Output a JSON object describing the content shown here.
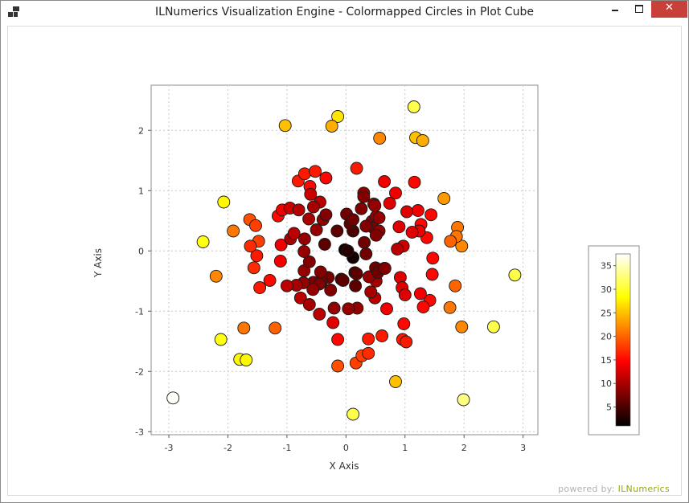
{
  "window": {
    "title": "ILNumerics Visualization Engine - Colormapped Circles in Plot Cube",
    "close_glyph": "✕"
  },
  "footer": {
    "powered_by": "powered by:",
    "brand": "ILNumerics",
    "brand_color": "#9aa515"
  },
  "chart_data": {
    "type": "scatter",
    "title": "",
    "xlabel": "X Axis",
    "ylabel": "Y Axis",
    "xlim": [
      -3.3,
      3.25
    ],
    "ylim": [
      -3.05,
      2.75
    ],
    "xticks": [
      -3,
      -2,
      -1,
      0,
      1,
      2,
      3
    ],
    "yticks": [
      -3,
      -2,
      -1,
      0,
      1,
      2
    ],
    "grid": true,
    "legend": "none",
    "colormap": "hot",
    "colorbar": {
      "placement": "right",
      "range": [
        1,
        37.5
      ],
      "ticks": [
        5,
        10,
        15,
        20,
        25,
        30,
        35
      ]
    },
    "points": [
      [
        -2.93,
        -2.44,
        37.2
      ],
      [
        1.99,
        -2.47,
        33
      ],
      [
        0.12,
        -2.71,
        31
      ],
      [
        2.86,
        -0.4,
        31
      ],
      [
        1.15,
        2.39,
        31
      ],
      [
        2.5,
        -1.26,
        31
      ],
      [
        -2.12,
        -1.47,
        29
      ],
      [
        -1.8,
        -1.8,
        28
      ],
      [
        -1.69,
        -1.81,
        28
      ],
      [
        0.84,
        -2.17,
        25
      ],
      [
        -2.42,
        0.15,
        29
      ],
      [
        -2.07,
        0.81,
        28
      ],
      [
        -0.14,
        2.23,
        27
      ],
      [
        -1.03,
        2.08,
        25
      ],
      [
        -0.24,
        2.07,
        24
      ],
      [
        1.18,
        1.88,
        25
      ],
      [
        1.3,
        1.83,
        24
      ],
      [
        0.57,
        1.87,
        22
      ],
      [
        1.66,
        0.87,
        23
      ],
      [
        1.96,
        0.08,
        22
      ],
      [
        1.89,
        0.39,
        21
      ],
      [
        1.87,
        0.24,
        21
      ],
      [
        1.77,
        0.16,
        20
      ],
      [
        1.96,
        -1.26,
        22
      ],
      [
        1.76,
        -0.94,
        21
      ],
      [
        1.85,
        -0.58,
        20
      ],
      [
        -2.2,
        -0.42,
        22
      ],
      [
        -1.91,
        0.33,
        21
      ],
      [
        -1.73,
        -1.28,
        21
      ],
      [
        -1.2,
        -1.28,
        20
      ],
      [
        -0.14,
        -1.91,
        19
      ],
      [
        0.17,
        -1.86,
        18
      ],
      [
        0.27,
        -1.74,
        18
      ],
      [
        0.38,
        -1.7,
        17
      ],
      [
        -1.63,
        0.52,
        19
      ],
      [
        -1.48,
        0.16,
        18
      ],
      [
        -1.53,
        0.42,
        18
      ],
      [
        -1.56,
        -0.28,
        17
      ],
      [
        -1.51,
        -0.08,
        16
      ],
      [
        -1.62,
        0.08,
        17
      ],
      [
        -1.46,
        -0.61,
        16
      ],
      [
        -1.29,
        -0.49,
        15
      ],
      [
        -1.11,
        -0.17,
        14
      ],
      [
        -1.15,
        0.58,
        15
      ],
      [
        -1.1,
        0.1,
        14
      ],
      [
        -1.08,
        0.68,
        14
      ],
      [
        -0.81,
        1.16,
        16
      ],
      [
        -0.7,
        1.28,
        16
      ],
      [
        -0.52,
        1.32,
        16
      ],
      [
        -0.34,
        1.21,
        15
      ],
      [
        -0.61,
        1.07,
        15
      ],
      [
        0.18,
        1.37,
        16
      ],
      [
        -0.14,
        -1.47,
        15
      ],
      [
        -0.22,
        -1.19,
        13
      ],
      [
        0.38,
        -1.46,
        16
      ],
      [
        0.61,
        -1.41,
        16
      ],
      [
        0.69,
        -0.96,
        14
      ],
      [
        0.96,
        -1.47,
        16
      ],
      [
        1.02,
        -1.51,
        16
      ],
      [
        0.98,
        -1.21,
        15
      ],
      [
        1.47,
        -0.12,
        15
      ],
      [
        1.46,
        -0.39,
        15
      ],
      [
        1.42,
        -0.82,
        15
      ],
      [
        1.31,
        -0.93,
        15
      ],
      [
        1.26,
        -0.71,
        14
      ],
      [
        1.44,
        0.6,
        15
      ],
      [
        1.37,
        0.22,
        15
      ],
      [
        1.27,
        0.44,
        15
      ],
      [
        1.24,
        0.33,
        14
      ],
      [
        1.12,
        0.31,
        13
      ],
      [
        1.22,
        0.67,
        14
      ],
      [
        1.03,
        0.65,
        13
      ],
      [
        1.16,
        1.14,
        15
      ],
      [
        0.84,
        0.96,
        14
      ],
      [
        0.74,
        0.79,
        13
      ],
      [
        0.65,
        1.15,
        14
      ],
      [
        0.9,
        0.4,
        13
      ],
      [
        0.97,
        0.08,
        12
      ],
      [
        0.87,
        0.03,
        11
      ],
      [
        0.92,
        -0.44,
        13
      ],
      [
        0.95,
        -0.61,
        13
      ],
      [
        1.0,
        -0.73,
        13
      ],
      [
        0.49,
        -0.78,
        11
      ],
      [
        0.51,
        -0.5,
        10
      ],
      [
        0.39,
        -0.43,
        9
      ],
      [
        0.42,
        -0.68,
        10
      ],
      [
        0.19,
        -0.95,
        9
      ],
      [
        0.04,
        -0.96,
        9
      ],
      [
        -0.2,
        -0.95,
        9
      ],
      [
        -0.08,
        -0.47,
        5
      ],
      [
        0.16,
        -0.58,
        6
      ],
      [
        0.15,
        -0.36,
        5
      ],
      [
        -0.3,
        -0.44,
        7
      ],
      [
        -0.42,
        -0.52,
        8
      ],
      [
        -0.43,
        -0.35,
        8
      ],
      [
        -0.55,
        -0.52,
        8
      ],
      [
        -0.72,
        -0.53,
        9
      ],
      [
        -0.84,
        -0.57,
        10
      ],
      [
        -1.0,
        -0.58,
        11
      ],
      [
        -0.71,
        -0.33,
        9
      ],
      [
        -0.77,
        -0.78,
        11
      ],
      [
        -0.62,
        -0.89,
        10
      ],
      [
        -0.45,
        -1.05,
        11
      ],
      [
        -0.7,
        0.2,
        9
      ],
      [
        -0.94,
        0.2,
        10
      ],
      [
        -0.71,
        -0.01,
        9
      ],
      [
        -0.88,
        0.29,
        11
      ],
      [
        -0.95,
        0.71,
        12
      ],
      [
        -0.8,
        0.68,
        11
      ],
      [
        -0.63,
        0.53,
        10
      ],
      [
        -0.5,
        0.35,
        9
      ],
      [
        -0.6,
        0.94,
        12
      ],
      [
        -0.44,
        0.81,
        11
      ],
      [
        -0.55,
        0.73,
        10
      ],
      [
        -0.39,
        0.52,
        9
      ],
      [
        -0.15,
        0.33,
        6
      ],
      [
        -0.36,
        0.11,
        6
      ],
      [
        -0.62,
        -0.18,
        8
      ],
      [
        -0.02,
        0.02,
        2
      ],
      [
        0.12,
        -0.11,
        2
      ],
      [
        0.03,
        0.0,
        3
      ],
      [
        0.12,
        0.33,
        5
      ],
      [
        0.01,
        0.61,
        7
      ],
      [
        0.07,
        0.45,
        6
      ],
      [
        0.26,
        0.7,
        8
      ],
      [
        0.3,
        0.96,
        9
      ],
      [
        0.47,
        0.78,
        10
      ],
      [
        0.44,
        0.49,
        9
      ],
      [
        0.51,
        0.57,
        9
      ],
      [
        0.47,
        0.38,
        8
      ],
      [
        0.34,
        0.41,
        8
      ],
      [
        0.56,
        0.33,
        9
      ],
      [
        0.31,
        0.14,
        7
      ],
      [
        0.34,
        -0.05,
        7
      ],
      [
        0.5,
        -0.28,
        7
      ],
      [
        0.54,
        -0.36,
        7
      ],
      [
        0.65,
        -0.29,
        8
      ],
      [
        0.66,
        -0.29,
        8
      ],
      [
        0.12,
        0.52,
        7
      ],
      [
        0.3,
        0.9,
        8
      ],
      [
        -0.45,
        -0.55,
        8
      ],
      [
        -0.26,
        -0.65,
        8
      ],
      [
        -0.56,
        -0.64,
        9
      ],
      [
        -0.34,
        0.6,
        8
      ],
      [
        0.51,
        0.26,
        8
      ],
      [
        0.56,
        0.55,
        9
      ],
      [
        0.18,
        -0.38,
        6
      ],
      [
        0.49,
        0.75,
        9
      ],
      [
        -0.05,
        -0.49,
        6
      ]
    ]
  }
}
